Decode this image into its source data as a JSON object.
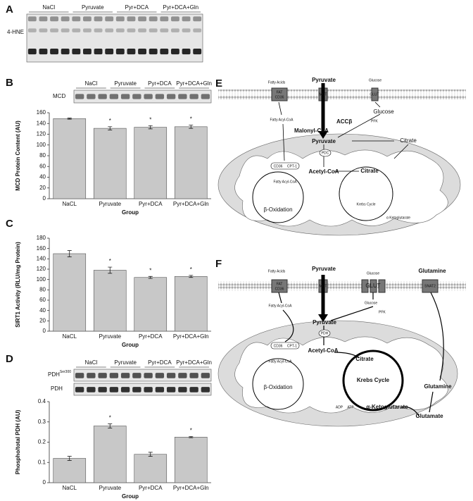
{
  "panel_a": {
    "letter": "A",
    "protein": "4-HNE",
    "groups": [
      "NaCl",
      "Pyruvate",
      "Pyr+DCA",
      "Pyr+DCA+Gln"
    ]
  },
  "panel_b_blot": {
    "protein": "MCD",
    "groups": [
      "NaCl",
      "Pyruvate",
      "Pyr+DCA",
      "Pyr+DCA+Gln"
    ]
  },
  "panel_d_blot": {
    "protein_phospho": "PDH",
    "phospho_site": "Ser300",
    "protein": "PDH",
    "groups": [
      "NaCl",
      "Pyruvate",
      "Pyr+DCA",
      "Pyr+DCA+Gln"
    ]
  },
  "chart_data": [
    {
      "type": "bar",
      "label": "B",
      "xlabel": "Group",
      "ylabel": "MCD Protein Content (AU)",
      "categories": [
        "NaCL",
        "Pyruvate",
        "Pyr+DCA",
        "Pyr+DCA+Gln"
      ],
      "values": [
        149,
        131,
        133,
        134
      ],
      "errors": [
        1,
        3,
        3,
        3
      ],
      "significance": [
        null,
        "*",
        "*",
        "*"
      ],
      "color": "#c8c8c8",
      "ylim": [
        0,
        160
      ],
      "yticks": [
        0,
        20,
        40,
        60,
        80,
        100,
        120,
        140,
        160
      ]
    },
    {
      "type": "bar",
      "label": "C",
      "xlabel": "Group",
      "ylabel": "SIRT1 Activity (RLU/mg Protein)",
      "categories": [
        "NaCL",
        "Pyruvate",
        "Pyr+DCA",
        "Pyr+DCA+Gln"
      ],
      "values": [
        150,
        118,
        104,
        106
      ],
      "errors": [
        6,
        6,
        2,
        2
      ],
      "significance": [
        null,
        "*",
        "*",
        "*"
      ],
      "color": "#c8c8c8",
      "ylim": [
        0,
        180
      ],
      "yticks": [
        0,
        20,
        40,
        60,
        80,
        100,
        120,
        140,
        160,
        180
      ]
    },
    {
      "type": "bar",
      "label": "D",
      "xlabel": "Group",
      "ylabel": "Phospho/total PDH (AU)",
      "categories": [
        "NaCL",
        "Pyruvate",
        "Pyr+DCA",
        "Pyr+DCA+Gln"
      ],
      "values": [
        0.12,
        0.28,
        0.14,
        0.225
      ],
      "errors": [
        0.01,
        0.01,
        0.01,
        0.003
      ],
      "significance": [
        null,
        "*",
        null,
        "*"
      ],
      "color": "#c8c8c8",
      "ylim": [
        0,
        0.4
      ],
      "yticks": [
        0,
        0.1,
        0.2,
        0.3,
        0.4
      ]
    }
  ],
  "diagram_e": {
    "letter": "E",
    "fatty_acids": "Fatty Acids",
    "pyruvate_out": "Pyruvate",
    "glucose_out": "Glucose",
    "fat": "FAT",
    "cd36": "CD36",
    "mct": "MCT",
    "glut": "GLUT",
    "fatty_acyl_coa": "Fatty Acyl-CoA",
    "acc": "ACCβ",
    "malonyl": "Malonyl-CoA",
    "pyruvate": "Pyruvate",
    "glucose": "Glucose",
    "pfk": "PFK",
    "citrate_out": "Citrate",
    "pdc": "PDC",
    "cd36_m": "CD36",
    "cpt1": "CPT-1",
    "acetyl": "Acetyl-CoA",
    "citrate": "Citrate",
    "fatty_acyl_coa_in": "Fatty Acyl-CoA",
    "beta": "β-Oxidation",
    "krebs": "Krebs Cycle",
    "akg": "α Ketoglutarate"
  },
  "diagram_f": {
    "letter": "F",
    "fatty_acids": "Fatty Acids",
    "pyruvate_out": "Pyruvate",
    "glucose_out": "Glucose",
    "glutamine_out": "Glutamine",
    "fat": "FAT",
    "cd36": "CD36",
    "mct": "MCT",
    "glut": "GLUT",
    "snat": "SNAT2",
    "fatty_acyl_coa": "Fatty Acyl-CoA",
    "glucose": "Glucose",
    "pfk": "PFK",
    "pyruvate": "Pyruvate",
    "pdh": "PDH",
    "cd36_m": "CD36",
    "cpt1": "CPT-1",
    "acetyl": "Acetyl-CoA",
    "citrate": "Citrate",
    "fatty_acyl_coa_in": "Fatty Acyl-CoA",
    "beta": "β-Oxidation",
    "krebs": "Krebs Cycle",
    "akg": "α-Ketoglutarate",
    "glutamine": "Glutamine",
    "glutamate": "Glutamate",
    "adp": "ADP",
    "atp": "ATP"
  }
}
